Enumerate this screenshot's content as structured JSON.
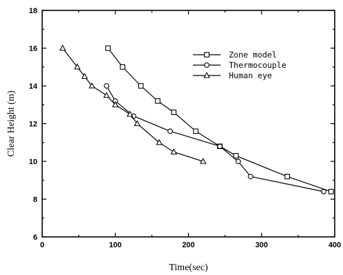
{
  "chart_data": {
    "type": "line",
    "xlabel": "Time(sec)",
    "ylabel": "Clear Height (m)",
    "xlim": [
      0,
      400
    ],
    "ylim": [
      6,
      18
    ],
    "xticks": [
      0,
      100,
      200,
      300,
      400
    ],
    "yticks": [
      6,
      8,
      10,
      12,
      14,
      16,
      18
    ],
    "grid": false,
    "legend_position": "top-right",
    "series": [
      {
        "name": "Zone model",
        "marker": "square",
        "x": [
          90,
          110,
          135,
          158,
          180,
          210,
          243,
          265,
          335,
          395
        ],
        "y": [
          16.0,
          15.0,
          14.0,
          13.2,
          12.6,
          11.6,
          10.8,
          10.3,
          9.2,
          8.4
        ]
      },
      {
        "name": "Thermocouple",
        "marker": "circle",
        "x": [
          88,
          100,
          125,
          175,
          243,
          268,
          285,
          385
        ],
        "y": [
          14.0,
          13.2,
          12.4,
          11.6,
          10.8,
          10.0,
          9.2,
          8.4
        ]
      },
      {
        "name": "Human eye",
        "marker": "triangle",
        "x": [
          28,
          48,
          58,
          68,
          88,
          100,
          120,
          130,
          160,
          180,
          220
        ],
        "y": [
          16.0,
          15.0,
          14.5,
          14.0,
          13.5,
          13.0,
          12.5,
          12.0,
          11.0,
          10.5,
          10.0
        ]
      }
    ]
  }
}
